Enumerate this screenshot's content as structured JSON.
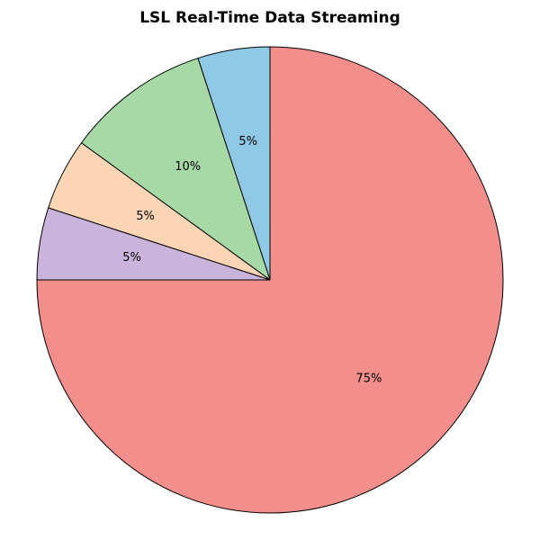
{
  "chart_data": {
    "type": "pie",
    "title": "LSL Real-Time Data Streaming",
    "start_angle_deg": 90,
    "direction": "counterclockwise",
    "slices": [
      {
        "value": 5,
        "label": "5%",
        "color": "#8fc9e6"
      },
      {
        "value": 10,
        "label": "10%",
        "color": "#a6d9a6"
      },
      {
        "value": 5,
        "label": "5%",
        "color": "#fcd5b5"
      },
      {
        "value": 5,
        "label": "5%",
        "color": "#cbb4dc"
      },
      {
        "value": 75,
        "label": "75%",
        "color": "#f28e8c"
      }
    ]
  }
}
